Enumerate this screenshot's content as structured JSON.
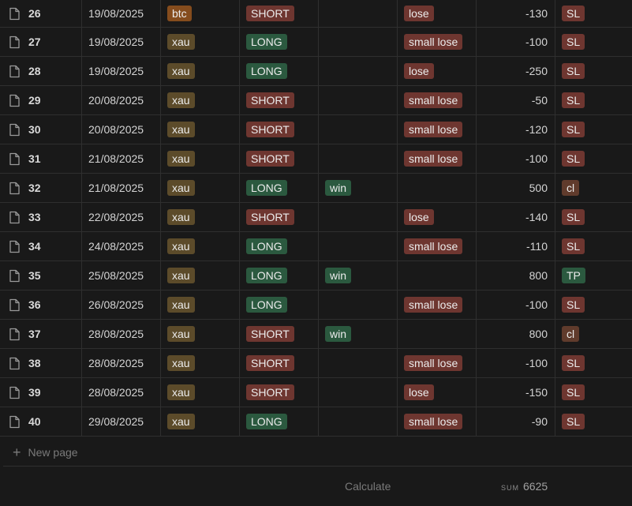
{
  "colors": {
    "background": "#191919",
    "tag_btc": "#854c1d",
    "tag_xau": "#5c4b2a",
    "tag_short": "#6e3630",
    "tag_long": "#2b593f",
    "tag_win": "#2b593f",
    "tag_lose": "#6e3630",
    "tag_sl": "#6e3630",
    "tag_tp": "#2b593f",
    "tag_cl": "#603b2c"
  },
  "row_icon": "page-icon",
  "rows": [
    {
      "num": "26",
      "date": "19/08/2025",
      "asset": "btc",
      "direction": "SHORT",
      "win": "",
      "result": "lose",
      "pnl": "-130",
      "exit": "SL"
    },
    {
      "num": "27",
      "date": "19/08/2025",
      "asset": "xau",
      "direction": "LONG",
      "win": "",
      "result": "small lose",
      "pnl": "-100",
      "exit": "SL"
    },
    {
      "num": "28",
      "date": "19/08/2025",
      "asset": "xau",
      "direction": "LONG",
      "win": "",
      "result": "lose",
      "pnl": "-250",
      "exit": "SL"
    },
    {
      "num": "29",
      "date": "20/08/2025",
      "asset": "xau",
      "direction": "SHORT",
      "win": "",
      "result": "small lose",
      "pnl": "-50",
      "exit": "SL"
    },
    {
      "num": "30",
      "date": "20/08/2025",
      "asset": "xau",
      "direction": "SHORT",
      "win": "",
      "result": "small lose",
      "pnl": "-120",
      "exit": "SL"
    },
    {
      "num": "31",
      "date": "21/08/2025",
      "asset": "xau",
      "direction": "SHORT",
      "win": "",
      "result": "small lose",
      "pnl": "-100",
      "exit": "SL"
    },
    {
      "num": "32",
      "date": "21/08/2025",
      "asset": "xau",
      "direction": "LONG",
      "win": "win",
      "result": "",
      "pnl": "500",
      "exit": "cl"
    },
    {
      "num": "33",
      "date": "22/08/2025",
      "asset": "xau",
      "direction": "SHORT",
      "win": "",
      "result": "lose",
      "pnl": "-140",
      "exit": "SL"
    },
    {
      "num": "34",
      "date": "24/08/2025",
      "asset": "xau",
      "direction": "LONG",
      "win": "",
      "result": "small lose",
      "pnl": "-110",
      "exit": "SL"
    },
    {
      "num": "35",
      "date": "25/08/2025",
      "asset": "xau",
      "direction": "LONG",
      "win": "win",
      "result": "",
      "pnl": "800",
      "exit": "TP"
    },
    {
      "num": "36",
      "date": "26/08/2025",
      "asset": "xau",
      "direction": "LONG",
      "win": "",
      "result": "small lose",
      "pnl": "-100",
      "exit": "SL"
    },
    {
      "num": "37",
      "date": "28/08/2025",
      "asset": "xau",
      "direction": "SHORT",
      "win": "win",
      "result": "",
      "pnl": "800",
      "exit": "cl"
    },
    {
      "num": "38",
      "date": "28/08/2025",
      "asset": "xau",
      "direction": "SHORT",
      "win": "",
      "result": "small lose",
      "pnl": "-100",
      "exit": "SL"
    },
    {
      "num": "39",
      "date": "28/08/2025",
      "asset": "xau",
      "direction": "SHORT",
      "win": "",
      "result": "lose",
      "pnl": "-150",
      "exit": "SL"
    },
    {
      "num": "40",
      "date": "29/08/2025",
      "asset": "xau",
      "direction": "LONG",
      "win": "",
      "result": "small lose",
      "pnl": "-90",
      "exit": "SL"
    }
  ],
  "new_page": {
    "icon": "plus-icon",
    "label": "New page"
  },
  "footer": {
    "calculate_label": "Calculate",
    "sum_label": "SUM",
    "sum_value": "6625"
  }
}
